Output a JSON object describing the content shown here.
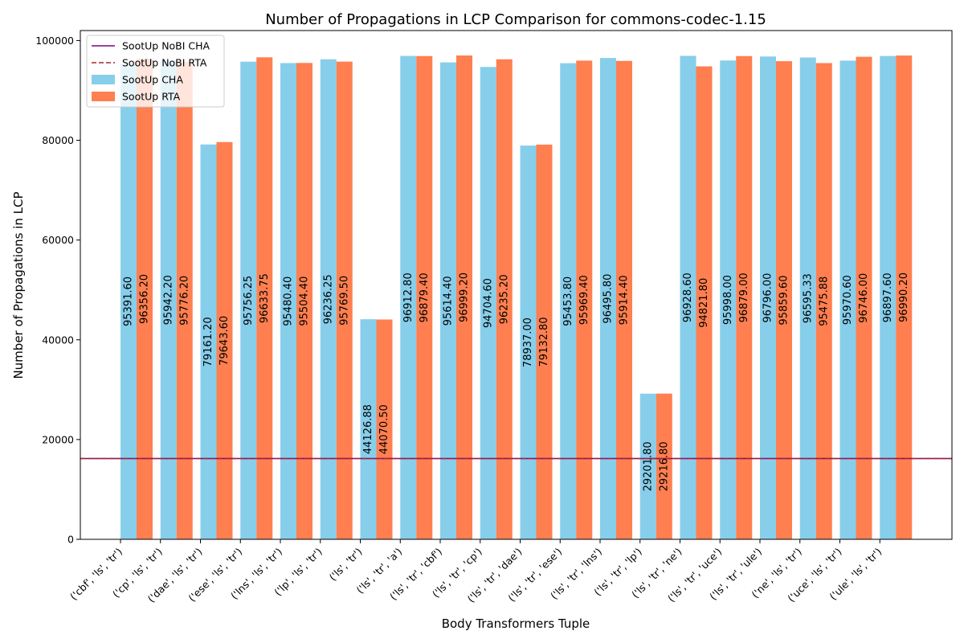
{
  "chart_data": {
    "type": "bar",
    "title": "Number of Propagations in LCP Comparison for commons-codec-1.15",
    "xlabel": "Body Transformers Tuple",
    "ylabel": "Number of Propagations in LCP",
    "ylim": [
      0,
      102000
    ],
    "yticks": [
      0,
      20000,
      40000,
      60000,
      80000,
      100000
    ],
    "ytick_labels": [
      "0",
      "20000",
      "40000",
      "60000",
      "80000",
      "100000"
    ],
    "legend_position": "top-left",
    "categories": [
      "('cbf', 'ls', 'tr')",
      "('cp', 'ls', 'tr')",
      "('dae', 'ls', 'tr')",
      "('ese', 'ls', 'tr')",
      "('lns', 'ls', 'tr')",
      "('lp', 'ls', 'tr')",
      "('ls', 'tr')",
      "('ls', 'tr', 'a')",
      "('ls', 'tr', 'cbf')",
      "('ls', 'tr', 'cp')",
      "('ls', 'tr', 'dae')",
      "('ls', 'tr', 'ese')",
      "('ls', 'tr', 'lns')",
      "('ls', 'tr', 'lp')",
      "('ls', 'tr', 'ne')",
      "('ls', 'tr', 'uce')",
      "('ls', 'tr', 'ule')",
      "('ne', 'ls', 'tr')",
      "('uce', 'ls', 'tr')",
      "('ule', 'ls', 'tr')"
    ],
    "series": [
      {
        "name": "SootUp CHA",
        "color": "#87CEEB",
        "values": [
          95391.6,
          95942.2,
          79161.2,
          95756.25,
          95480.4,
          96236.25,
          44126.88,
          96912.8,
          95614.4,
          94704.6,
          78937.0,
          95453.8,
          96495.8,
          29201.8,
          96928.6,
          95998.0,
          96796.0,
          96595.33,
          95970.6,
          96897.6
        ],
        "labels": [
          "95391.60",
          "95942.20",
          "79161.20",
          "95756.25",
          "95480.40",
          "96236.25",
          "44126.88",
          "96912.80",
          "95614.40",
          "94704.60",
          "78937.00",
          "95453.80",
          "96495.80",
          "29201.80",
          "96928.60",
          "95998.00",
          "96796.00",
          "96595.33",
          "95970.60",
          "96897.60"
        ]
      },
      {
        "name": "SootUp RTA",
        "color": "#FF7F50",
        "values": [
          96356.2,
          95776.2,
          79643.6,
          96633.75,
          95504.4,
          95769.5,
          44070.5,
          96879.4,
          96999.2,
          96235.2,
          79132.8,
          95969.4,
          95914.4,
          29216.8,
          94821.8,
          96879.0,
          95859.6,
          95475.88,
          96746.0,
          96990.2
        ],
        "labels": [
          "96356.20",
          "95776.20",
          "79643.60",
          "96633.75",
          "95504.40",
          "95769.50",
          "44070.50",
          "96879.40",
          "96999.20",
          "96235.20",
          "79132.80",
          "95969.40",
          "95914.40",
          "29216.80",
          "94821.80",
          "96879.00",
          "95859.60",
          "95475.88",
          "96746.00",
          "96990.20"
        ]
      }
    ],
    "reference_lines": [
      {
        "name": "SootUp NoBI CHA",
        "value": 16200,
        "color": "#800080",
        "style": "solid"
      },
      {
        "name": "SootUp NoBI RTA",
        "value": 16200,
        "color": "#A52A2A",
        "style": "dashed"
      }
    ]
  }
}
